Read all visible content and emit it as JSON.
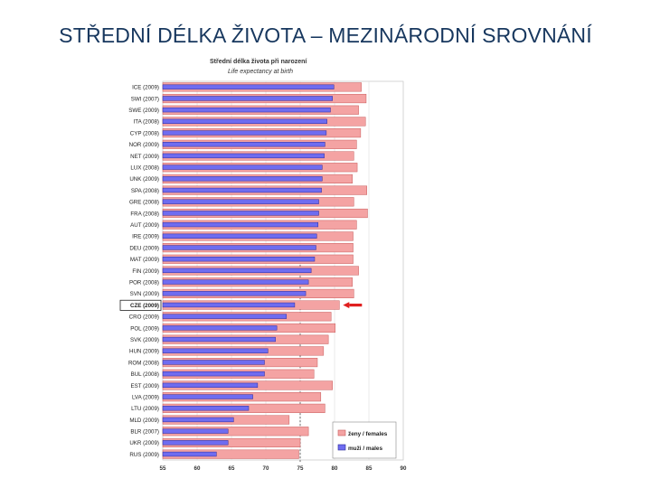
{
  "slide": {
    "title": "STŘEDNÍ DÉLKA ŽIVOTA – MEZINÁRODNÍ SROVNÁNÍ"
  },
  "colors": {
    "females": "#f4a3a3",
    "females_border": "#c85a5a",
    "males": "#6f6cf0",
    "males_border": "#2b2a9a",
    "highlight_arrow": "#e02020",
    "reference_line": "#444444"
  },
  "chart_data": {
    "type": "bar",
    "orientation": "horizontal",
    "title": "Střední délka života při narození",
    "subtitle": "Life expectancy at birth",
    "categories": [
      "ICE (2009)",
      "SWI (2007)",
      "SWE (2009)",
      "ITA (2008)",
      "CYP (2008)",
      "NOR (2009)",
      "NET (2009)",
      "LUX (2008)",
      "UNK (2009)",
      "SPA (2008)",
      "GRE (2008)",
      "FRA (2008)",
      "AUT (2009)",
      "IRE (2009)",
      "DEU (2009)",
      "MAT (2009)",
      "FIN (2009)",
      "POR (2008)",
      "SVN (2009)",
      "CZE (2009)",
      "CRO (2009)",
      "POL (2009)",
      "SVK (2009)",
      "HUN (2009)",
      "ROM (2008)",
      "BUL (2008)",
      "EST (2009)",
      "LVA (2009)",
      "LTU (2009)",
      "MLD (2009)",
      "BLR (2007)",
      "UKR (2009)",
      "RUS (2009)"
    ],
    "highlighted_category": "CZE (2009)",
    "series": [
      {
        "name": "ženy / females",
        "values": [
          83.9,
          84.6,
          83.5,
          84.5,
          83.8,
          83.2,
          82.8,
          83.3,
          82.6,
          84.7,
          82.8,
          84.8,
          83.2,
          82.7,
          82.7,
          82.7,
          83.5,
          82.6,
          82.8,
          80.7,
          79.5,
          80.1,
          79.1,
          78.4,
          77.5,
          77.0,
          79.7,
          78.0,
          78.6,
          73.4,
          76.2,
          75.0,
          74.8
        ]
      },
      {
        "name": "muži / males",
        "values": [
          79.9,
          79.7,
          79.4,
          78.9,
          78.8,
          78.6,
          78.5,
          78.2,
          78.2,
          78.1,
          77.7,
          77.7,
          77.6,
          77.4,
          77.3,
          77.1,
          76.6,
          76.2,
          75.8,
          74.2,
          73.0,
          71.6,
          71.4,
          70.3,
          69.8,
          69.8,
          68.8,
          68.1,
          67.5,
          65.3,
          64.5,
          64.5,
          62.8
        ]
      }
    ],
    "x_ticks": [
      "55",
      "60",
      "65",
      "70",
      "75",
      "80",
      "85",
      "90"
    ],
    "xlim": [
      55,
      90
    ],
    "reference_line_x": 75,
    "legend_position": "bottom-right",
    "grid": true
  }
}
